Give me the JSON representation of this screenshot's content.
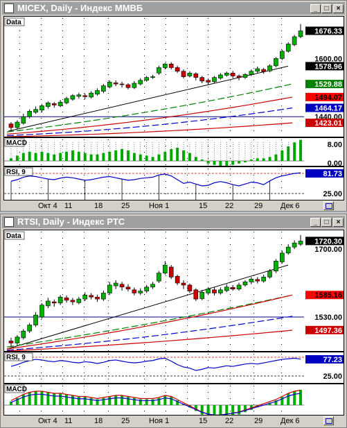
{
  "windows": [
    {
      "title": "MICEX, Daily - Индекс ММВБ",
      "main_label": "Data",
      "price_labels": [
        {
          "text": "1676.33",
          "bg": "#000000",
          "fg": "#ffffff",
          "value": 1676.33
        },
        {
          "text": "1600.00",
          "bg": "#ffffff",
          "fg": "#000000",
          "value": 1600.0,
          "plain": true
        },
        {
          "text": "1578.96",
          "bg": "#000000",
          "fg": "#ffffff",
          "value": 1578.96
        },
        {
          "text": "1529.88",
          "bg": "#008000",
          "fg": "#ffffff",
          "value": 1529.88
        },
        {
          "text": "1494.07",
          "bg": "#ff0000",
          "fg": "#000000",
          "value": 1494.07
        },
        {
          "text": "1464.17",
          "bg": "#0000c0",
          "fg": "#ffffff",
          "value": 1464.17
        },
        {
          "text": "1440.00",
          "bg": "#ffffff",
          "fg": "#000000",
          "value": 1440.0,
          "plain": true
        },
        {
          "text": "1423.01",
          "bg": "#cc0000",
          "fg": "#ffffff",
          "value": 1423.01
        }
      ],
      "ind1": {
        "label": "MACD",
        "scale": [
          "8.00",
          "0.00"
        ]
      },
      "ind2": {
        "label": "RSI, 9",
        "scale": [
          "81.73",
          "25.00"
        ]
      },
      "x_labels": [
        "Окт 4",
        "11",
        "18",
        "25",
        "Ноя 1",
        "15",
        "22",
        "29",
        "Дек 6"
      ]
    },
    {
      "title": "RTSI, Daily - Индекс РТС",
      "main_label": "Data",
      "price_labels": [
        {
          "text": "1720.30",
          "bg": "#000000",
          "fg": "#ffffff",
          "value": 1720.3
        },
        {
          "text": "1700.00",
          "bg": "#ffffff",
          "fg": "#000000",
          "value": 1700.0,
          "plain": true
        },
        {
          "text": "1585.16",
          "bg": "#ff0000",
          "fg": "#000000",
          "value": 1585.16
        },
        {
          "text": "1530.00",
          "bg": "#ffffff",
          "fg": "#000000",
          "value": 1530.0,
          "plain": true
        },
        {
          "text": "1497.36",
          "bg": "#cc0000",
          "fg": "#ffffff",
          "value": 1497.36
        }
      ],
      "ind1": {
        "label": "RSI, 9",
        "scale": [
          "77.23",
          "25.00"
        ]
      },
      "ind2": {
        "label": "MACD",
        "scale": []
      },
      "x_labels": [
        "Окт 4",
        "11",
        "18",
        "25",
        "Ноя 1",
        "15",
        "22",
        "29",
        "Дек 6"
      ]
    }
  ],
  "colors": {
    "bull": "#00b000",
    "bear": "#cc0000",
    "trend": "#000000",
    "ma_green": "#008000",
    "ma_red": "#cc0000",
    "ma_blue": "#0000cc"
  }
}
